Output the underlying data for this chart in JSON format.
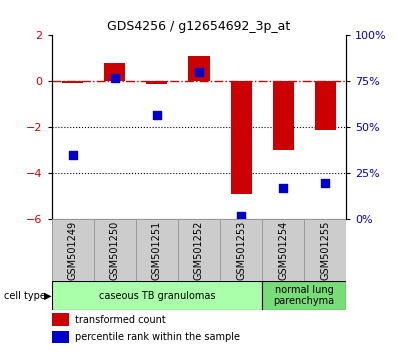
{
  "title": "GDS4256 / g12654692_3p_at",
  "samples": [
    "GSM501249",
    "GSM501250",
    "GSM501251",
    "GSM501252",
    "GSM501253",
    "GSM501254",
    "GSM501255"
  ],
  "transformed_count": [
    -0.05,
    0.8,
    -0.1,
    1.1,
    -4.9,
    -3.0,
    -2.1
  ],
  "percentile_rank": [
    35,
    77,
    57,
    80,
    2,
    17,
    20
  ],
  "ylim_left": [
    -6,
    2
  ],
  "ylim_right": [
    0,
    100
  ],
  "yticks_left": [
    -6,
    -4,
    -2,
    0,
    2
  ],
  "yticks_right": [
    0,
    25,
    50,
    75,
    100
  ],
  "yticklabels_right": [
    "0%",
    "25%",
    "50%",
    "75%",
    "100%"
  ],
  "bar_color": "#cc0000",
  "dot_color": "#0000cc",
  "dashed_line_color": "#cc0000",
  "cell_types": [
    {
      "label": "caseous TB granulomas",
      "start": 0,
      "end": 4,
      "color": "#aaffaa"
    },
    {
      "label": "normal lung\nparenchyma",
      "start": 5,
      "end": 6,
      "color": "#77dd77"
    }
  ],
  "legend_bar_label": "transformed count",
  "legend_dot_label": "percentile rank within the sample",
  "cell_type_label": "cell type",
  "tick_bg_color": "#cccccc",
  "tick_border_color": "#999999",
  "title_fontsize": 9,
  "axis_fontsize": 8,
  "tick_label_fontsize": 7,
  "cell_type_fontsize": 8,
  "legend_fontsize": 7
}
